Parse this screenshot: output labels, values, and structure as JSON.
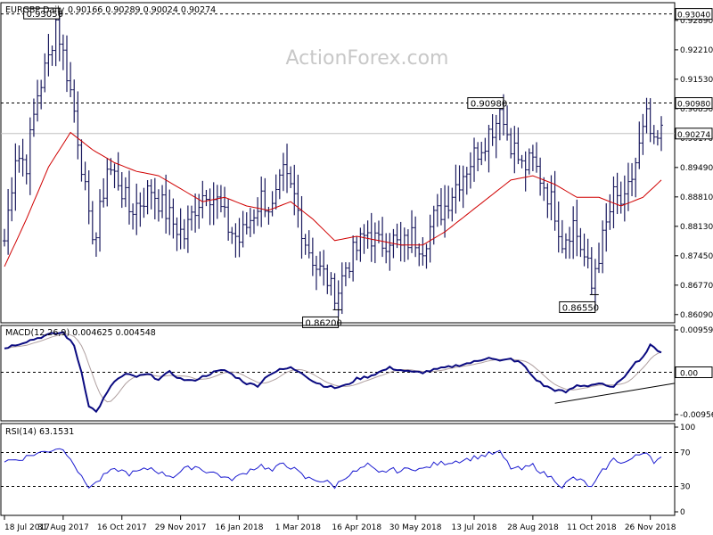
{
  "header": {
    "symbol": "EURGBP,Daily",
    "ohlc": "0.90166 0.90289 0.90024 0.90274"
  },
  "watermark": "ActionForex.com",
  "colors": {
    "background": "#ffffff",
    "price_bars": "#1a1a5e",
    "moving_average": "#d00000",
    "macd_line": "#0a0a80",
    "signal_line": "#b0a0a0",
    "trendline": "#000000",
    "dashed_level": "#000000",
    "rsi_line": "#1a1ad0",
    "watermark": "#c8c8c8"
  },
  "chart_data": [
    {
      "type": "ohlc",
      "panel": "price",
      "ylim": [
        0.859,
        0.933
      ],
      "y_ticks": [
        {
          "value": 0.9289,
          "label": "0.92890"
        },
        {
          "value": 0.9221,
          "label": "0.92210"
        },
        {
          "value": 0.9153,
          "label": "0.91530"
        },
        {
          "value": 0.9085,
          "label": "0.90850"
        },
        {
          "value": 0.9017,
          "label": "0.90170"
        },
        {
          "value": 0.8949,
          "label": "0.89490"
        },
        {
          "value": 0.8881,
          "label": "0.88810"
        },
        {
          "value": 0.8813,
          "label": "0.88130"
        },
        {
          "value": 0.8745,
          "label": "0.87450"
        },
        {
          "value": 0.8677,
          "label": "0.86770"
        },
        {
          "value": 0.8609,
          "label": "0.86090"
        }
      ],
      "level_boxes": [
        {
          "value": 0.9304,
          "label": "0.93040"
        },
        {
          "value": 0.9098,
          "label": "0.90980"
        },
        {
          "value": 0.90274,
          "label": "0.90274"
        }
      ],
      "dashed_levels": [
        0.9304,
        0.9098
      ],
      "current_price": 0.90274,
      "callouts": [
        {
          "label": "0.93050",
          "value": 0.9305,
          "bar": 14
        },
        {
          "label": "0.90980",
          "value": 0.9098,
          "bar": 135
        },
        {
          "label": "0.86200",
          "value": 0.862,
          "bar": 90
        },
        {
          "label": "0.86550",
          "value": 0.8655,
          "bar": 160
        }
      ],
      "close_anchors": [
        [
          0,
          0.878
        ],
        [
          3,
          0.898
        ],
        [
          6,
          0.896
        ],
        [
          9,
          0.912
        ],
        [
          12,
          0.92
        ],
        [
          14,
          0.929
        ],
        [
          17,
          0.917
        ],
        [
          19,
          0.908
        ],
        [
          21,
          0.896
        ],
        [
          23,
          0.882
        ],
        [
          25,
          0.879
        ],
        [
          28,
          0.895
        ],
        [
          31,
          0.892
        ],
        [
          34,
          0.885
        ],
        [
          37,
          0.887
        ],
        [
          40,
          0.89
        ],
        [
          43,
          0.886
        ],
        [
          46,
          0.882
        ],
        [
          49,
          0.879
        ],
        [
          52,
          0.886
        ],
        [
          55,
          0.89
        ],
        [
          58,
          0.887
        ],
        [
          61,
          0.881
        ],
        [
          64,
          0.878
        ],
        [
          67,
          0.883
        ],
        [
          70,
          0.888
        ],
        [
          73,
          0.885
        ],
        [
          76,
          0.893
        ],
        [
          79,
          0.888
        ],
        [
          82,
          0.878
        ],
        [
          85,
          0.872
        ],
        [
          88,
          0.869
        ],
        [
          90,
          0.864
        ],
        [
          93,
          0.872
        ],
        [
          96,
          0.876
        ],
        [
          99,
          0.88
        ],
        [
          102,
          0.877
        ],
        [
          105,
          0.879
        ],
        [
          108,
          0.876
        ],
        [
          111,
          0.879
        ],
        [
          114,
          0.877
        ],
        [
          117,
          0.883
        ],
        [
          120,
          0.886
        ],
        [
          123,
          0.891
        ],
        [
          126,
          0.895
        ],
        [
          129,
          0.899
        ],
        [
          132,
          0.903
        ],
        [
          135,
          0.907
        ],
        [
          138,
          0.901
        ],
        [
          141,
          0.895
        ],
        [
          144,
          0.896
        ],
        [
          147,
          0.891
        ],
        [
          150,
          0.885
        ],
        [
          152,
          0.878
        ],
        [
          155,
          0.882
        ],
        [
          158,
          0.874
        ],
        [
          160,
          0.869
        ],
        [
          163,
          0.878
        ],
        [
          166,
          0.888
        ],
        [
          169,
          0.886
        ],
        [
          172,
          0.896
        ],
        [
          175,
          0.906
        ],
        [
          177,
          0.899
        ],
        [
          179,
          0.9027
        ]
      ],
      "ma_anchors": [
        [
          0,
          0.872
        ],
        [
          6,
          0.883
        ],
        [
          12,
          0.895
        ],
        [
          18,
          0.903
        ],
        [
          24,
          0.899
        ],
        [
          30,
          0.896
        ],
        [
          36,
          0.894
        ],
        [
          42,
          0.893
        ],
        [
          48,
          0.89
        ],
        [
          54,
          0.887
        ],
        [
          60,
          0.888
        ],
        [
          66,
          0.886
        ],
        [
          72,
          0.885
        ],
        [
          78,
          0.887
        ],
        [
          84,
          0.883
        ],
        [
          90,
          0.878
        ],
        [
          96,
          0.879
        ],
        [
          102,
          0.878
        ],
        [
          108,
          0.877
        ],
        [
          114,
          0.877
        ],
        [
          120,
          0.88
        ],
        [
          126,
          0.884
        ],
        [
          132,
          0.888
        ],
        [
          138,
          0.892
        ],
        [
          144,
          0.893
        ],
        [
          150,
          0.891
        ],
        [
          156,
          0.888
        ],
        [
          162,
          0.888
        ],
        [
          168,
          0.886
        ],
        [
          174,
          0.888
        ],
        [
          179,
          0.892
        ]
      ],
      "bar_count": 180
    },
    {
      "type": "line",
      "panel": "macd",
      "title": "MACD(12,26,9) 0.004625 0.004548",
      "ylim": [
        -0.011,
        0.0106
      ],
      "y_ticks": [
        {
          "value": 0.009593,
          "label": "0.009593"
        },
        {
          "value": 0.0,
          "label": "0.00"
        },
        {
          "value": -0.009562,
          "label": "-0.009562"
        }
      ],
      "zero_box": {
        "value": 0.0,
        "label": "0.00"
      },
      "macd_anchors": [
        [
          0,
          0.0055
        ],
        [
          6,
          0.007
        ],
        [
          12,
          0.0085
        ],
        [
          16,
          0.009
        ],
        [
          19,
          0.006
        ],
        [
          21,
          0.0
        ],
        [
          23,
          -0.0075
        ],
        [
          25,
          -0.009
        ],
        [
          27,
          -0.006
        ],
        [
          30,
          -0.002
        ],
        [
          33,
          -0.0005
        ],
        [
          36,
          -0.001
        ],
        [
          39,
          -0.0005
        ],
        [
          42,
          -0.0015
        ],
        [
          45,
          0.0
        ],
        [
          48,
          -0.0015
        ],
        [
          51,
          -0.002
        ],
        [
          54,
          -0.001
        ],
        [
          57,
          0.0
        ],
        [
          60,
          0.0005
        ],
        [
          63,
          -0.001
        ],
        [
          66,
          -0.0025
        ],
        [
          69,
          -0.003
        ],
        [
          72,
          -0.0005
        ],
        [
          75,
          0.0005
        ],
        [
          78,
          0.001
        ],
        [
          81,
          0.0
        ],
        [
          84,
          -0.002
        ],
        [
          87,
          -0.003
        ],
        [
          90,
          -0.0035
        ],
        [
          93,
          -0.003
        ],
        [
          96,
          -0.0015
        ],
        [
          99,
          -0.001
        ],
        [
          102,
          0.0
        ],
        [
          105,
          0.001
        ],
        [
          108,
          0.0005
        ],
        [
          111,
          0.0
        ],
        [
          114,
          0.0
        ],
        [
          117,
          0.0005
        ],
        [
          120,
          0.001
        ],
        [
          123,
          0.0015
        ],
        [
          126,
          0.002
        ],
        [
          129,
          0.0025
        ],
        [
          132,
          0.0035
        ],
        [
          135,
          0.0025
        ],
        [
          138,
          0.003
        ],
        [
          141,
          0.002
        ],
        [
          144,
          -0.001
        ],
        [
          147,
          -0.003
        ],
        [
          150,
          -0.004
        ],
        [
          153,
          -0.0045
        ],
        [
          156,
          -0.003
        ],
        [
          159,
          -0.003
        ],
        [
          162,
          -0.0025
        ],
        [
          165,
          -0.0035
        ],
        [
          168,
          -0.002
        ],
        [
          171,
          0.0015
        ],
        [
          174,
          0.0035
        ],
        [
          176,
          0.006
        ],
        [
          179,
          0.0046
        ]
      ],
      "signal_lag_bars": 3,
      "trendline": [
        [
          150,
          -0.007
        ],
        [
          188,
          -0.0025
        ]
      ]
    },
    {
      "type": "line",
      "panel": "rsi",
      "title": "RSI(14) 63.1531",
      "ylim": [
        0,
        100
      ],
      "y_ticks": [
        {
          "value": 100,
          "label": "100"
        },
        {
          "value": 70,
          "label": "70"
        },
        {
          "value": 30,
          "label": "30"
        },
        {
          "value": 0,
          "label": "0"
        }
      ],
      "dashed_levels": [
        70,
        30
      ],
      "rsi_anchors": [
        [
          0,
          60
        ],
        [
          4,
          62
        ],
        [
          8,
          68
        ],
        [
          12,
          72
        ],
        [
          15,
          76
        ],
        [
          18,
          65
        ],
        [
          21,
          40
        ],
        [
          23,
          30
        ],
        [
          25,
          34
        ],
        [
          28,
          46
        ],
        [
          31,
          50
        ],
        [
          34,
          45
        ],
        [
          37,
          48
        ],
        [
          40,
          52
        ],
        [
          43,
          45
        ],
        [
          46,
          42
        ],
        [
          49,
          50
        ],
        [
          52,
          54
        ],
        [
          55,
          48
        ],
        [
          58,
          45
        ],
        [
          61,
          38
        ],
        [
          64,
          42
        ],
        [
          67,
          50
        ],
        [
          70,
          55
        ],
        [
          73,
          48
        ],
        [
          76,
          58
        ],
        [
          79,
          50
        ],
        [
          82,
          40
        ],
        [
          85,
          38
        ],
        [
          88,
          35
        ],
        [
          90,
          30
        ],
        [
          93,
          42
        ],
        [
          96,
          48
        ],
        [
          99,
          55
        ],
        [
          102,
          45
        ],
        [
          105,
          50
        ],
        [
          108,
          48
        ],
        [
          111,
          52
        ],
        [
          114,
          50
        ],
        [
          117,
          56
        ],
        [
          120,
          58
        ],
        [
          123,
          60
        ],
        [
          126,
          62
        ],
        [
          129,
          65
        ],
        [
          132,
          68
        ],
        [
          135,
          70
        ],
        [
          138,
          52
        ],
        [
          141,
          50
        ],
        [
          144,
          55
        ],
        [
          147,
          45
        ],
        [
          150,
          38
        ],
        [
          152,
          30
        ],
        [
          155,
          40
        ],
        [
          158,
          35
        ],
        [
          160,
          28
        ],
        [
          163,
          48
        ],
        [
          166,
          62
        ],
        [
          169,
          58
        ],
        [
          172,
          65
        ],
        [
          175,
          72
        ],
        [
          177,
          60
        ],
        [
          179,
          63
        ]
      ]
    }
  ],
  "x_axis": {
    "labels": [
      {
        "label": "18 Jul 2017",
        "bar": 0
      },
      {
        "label": "31 Aug 2017",
        "bar": 16
      },
      {
        "label": "16 Oct 2017",
        "bar": 32
      },
      {
        "label": "29 Nov 2017",
        "bar": 48
      },
      {
        "label": "16 Jan 2018",
        "bar": 64
      },
      {
        "label": "1 Mar 2018",
        "bar": 80
      },
      {
        "label": "16 Apr 2018",
        "bar": 96
      },
      {
        "label": "30 May 2018",
        "bar": 112
      },
      {
        "label": "13 Jul 2018",
        "bar": 128
      },
      {
        "label": "28 Aug 2018",
        "bar": 144
      },
      {
        "label": "11 Oct 2018",
        "bar": 160
      },
      {
        "label": "26 Nov 2018",
        "bar": 176
      }
    ]
  }
}
